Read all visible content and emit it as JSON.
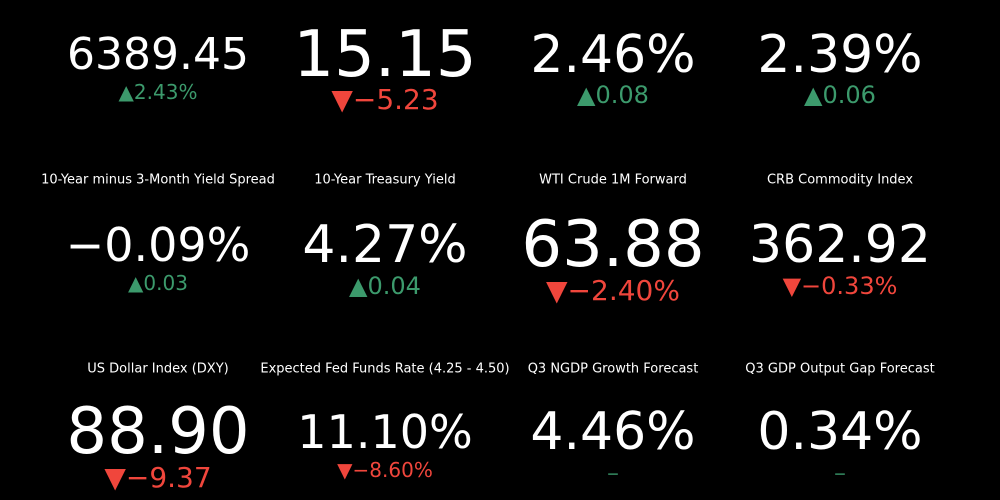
{
  "tiles": [
    {
      "value": "6389.45",
      "change": "▲2.43%",
      "change_color": "#3c9a6c"
    },
    {
      "value": "15.15",
      "change": "▼−5.23",
      "change_color": "#f0463c"
    },
    {
      "value": "2.46%",
      "change": "▲0.08",
      "change_color": "#3c9a6c"
    },
    {
      "value": "2.39%",
      "change": "▲0.06",
      "change_color": "#3c9a6c"
    },
    {
      "title": "10-Year minus 3-Month Yield Spread",
      "value": "−0.09%",
      "change": "▲0.03",
      "change_color": "#3c9a6c"
    },
    {
      "title": "10-Year Treasury Yield",
      "value": "4.27%",
      "change": "▲0.04",
      "change_color": "#3c9a6c"
    },
    {
      "title": "WTI Crude 1M Forward",
      "value": "63.88",
      "change": "▼−2.40%",
      "change_color": "#f0463c"
    },
    {
      "title": "CRB Commodity Index",
      "value": "362.92",
      "change": "▼−0.33%",
      "change_color": "#f0463c"
    },
    {
      "title": "US Dollar Index (DXY)",
      "value": "88.90",
      "change": "▼−9.37",
      "change_color": "#f0463c"
    },
    {
      "title": "Expected Fed Funds Rate (4.25 - 4.50)",
      "value": "11.10%",
      "change": "▼−8.60%",
      "change_color": "#f0463c"
    },
    {
      "title": "Q3 NGDP Growth Forecast",
      "value": "4.46%",
      "change": "–",
      "change_color": "#2e7a56"
    },
    {
      "title": "Q3 GDP Output Gap Forecast",
      "value": "0.34%",
      "change": "–",
      "change_color": "#2e7a56"
    }
  ]
}
